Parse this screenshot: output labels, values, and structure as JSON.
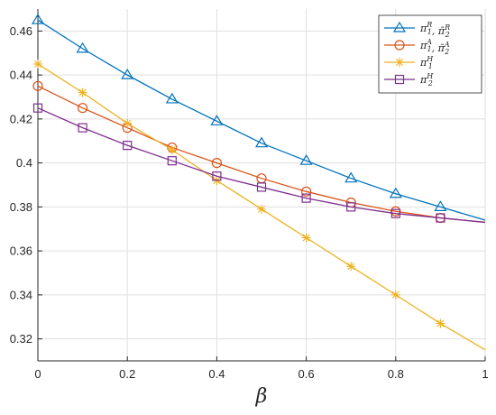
{
  "chart_data": {
    "type": "line",
    "xlabel": "β",
    "ylabel": "",
    "xlim": [
      0,
      1
    ],
    "ylim": [
      0.31,
      0.47
    ],
    "xticks": [
      0,
      0.2,
      0.4,
      0.6,
      0.8,
      1
    ],
    "xtick_labels": [
      "0",
      "0.2",
      "0.4",
      "0.6",
      "0.8",
      "1"
    ],
    "yticks": [
      0.32,
      0.34,
      0.36,
      0.38,
      0.4,
      0.42,
      0.44,
      0.46
    ],
    "ytick_labels": [
      "0.32",
      "0.34",
      "0.36",
      "0.38",
      "0.4",
      "0.42",
      "0.44",
      "0.46"
    ],
    "grid": true,
    "legend_position": "top-right",
    "series": [
      {
        "legend": [
          {
            "base": "π",
            "sub": "1",
            "sup": "R",
            "bar": false
          },
          {
            "base": "π",
            "sub": "2",
            "sup": "R",
            "bar": true
          }
        ],
        "color": "#0072BD",
        "marker": "triangle",
        "x": [
          0,
          0.1,
          0.2,
          0.3,
          0.4,
          0.5,
          0.6,
          0.7,
          0.8,
          0.9,
          1.0
        ],
        "y": [
          0.465,
          0.452,
          0.44,
          0.429,
          0.419,
          0.409,
          0.401,
          0.393,
          0.386,
          0.38,
          0.374
        ]
      },
      {
        "legend": [
          {
            "base": "π",
            "sub": "1",
            "sup": "A",
            "bar": false
          },
          {
            "base": "π",
            "sub": "2",
            "sup": "A",
            "bar": true
          }
        ],
        "color": "#D95319",
        "marker": "circle",
        "x": [
          0,
          0.1,
          0.2,
          0.3,
          0.4,
          0.5,
          0.6,
          0.7,
          0.8,
          0.9,
          1.0
        ],
        "y": [
          0.435,
          0.425,
          0.416,
          0.407,
          0.4,
          0.393,
          0.387,
          0.382,
          0.378,
          0.375,
          0.373
        ]
      },
      {
        "legend": [
          {
            "base": "π",
            "sub": "1",
            "sup": "H",
            "bar": false
          }
        ],
        "color": "#EDB120",
        "marker": "star",
        "x": [
          0,
          0.1,
          0.2,
          0.3,
          0.4,
          0.5,
          0.6,
          0.7,
          0.8,
          0.9,
          1.0
        ],
        "y": [
          0.445,
          0.432,
          0.418,
          0.406,
          0.392,
          0.379,
          0.366,
          0.353,
          0.34,
          0.327,
          0.315
        ]
      },
      {
        "legend": [
          {
            "base": "π",
            "sub": "2",
            "sup": "H",
            "bar": false
          }
        ],
        "color": "#7E2F8E",
        "marker": "square",
        "x": [
          0,
          0.1,
          0.2,
          0.3,
          0.4,
          0.5,
          0.6,
          0.7,
          0.8,
          0.9,
          1.0
        ],
        "y": [
          0.425,
          0.416,
          0.408,
          0.401,
          0.394,
          0.389,
          0.384,
          0.38,
          0.377,
          0.375,
          0.373
        ]
      }
    ]
  }
}
